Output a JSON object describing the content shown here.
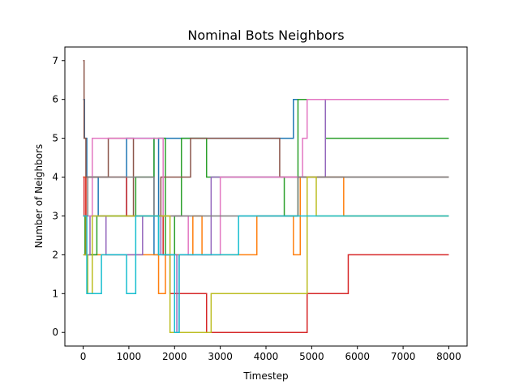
{
  "chart_data": {
    "type": "line",
    "title": "Nominal Bots Neighbors",
    "xlabel": "Timestep",
    "ylabel": "Number of Neighbors",
    "xlim": [
      -400,
      8400
    ],
    "ylim": [
      -0.35,
      7.35
    ],
    "xticks": [
      0,
      1000,
      2000,
      3000,
      4000,
      5000,
      6000,
      7000,
      8000
    ],
    "yticks": [
      0,
      1,
      2,
      3,
      4,
      5,
      6,
      7
    ],
    "xtick_labels": [
      "0",
      "1000",
      "2000",
      "3000",
      "4000",
      "5000",
      "6000",
      "7000",
      "8000"
    ],
    "ytick_labels": [
      "0",
      "1",
      "2",
      "3",
      "4",
      "5",
      "6",
      "7"
    ],
    "grid": false,
    "legend": "none",
    "series": [
      {
        "name": "series-1",
        "color": "#1f77b4",
        "points": [
          [
            0,
            6
          ],
          [
            30,
            6
          ],
          [
            30,
            5
          ],
          [
            80,
            5
          ],
          [
            80,
            4
          ],
          [
            330,
            4
          ],
          [
            330,
            3
          ],
          [
            950,
            3
          ],
          [
            950,
            5
          ],
          [
            1550,
            5
          ],
          [
            1550,
            2
          ],
          [
            1650,
            2
          ],
          [
            1650,
            5
          ],
          [
            2500,
            5
          ],
          [
            2500,
            5
          ],
          [
            4600,
            5
          ],
          [
            4600,
            6
          ],
          [
            8000,
            6
          ]
        ]
      },
      {
        "name": "series-2",
        "color": "#ff7f0e",
        "points": [
          [
            0,
            4
          ],
          [
            60,
            4
          ],
          [
            60,
            2
          ],
          [
            880,
            2
          ],
          [
            880,
            2
          ],
          [
            1400,
            2
          ],
          [
            1400,
            2
          ],
          [
            1650,
            2
          ],
          [
            1650,
            1
          ],
          [
            1800,
            1
          ],
          [
            1800,
            2
          ],
          [
            2400,
            2
          ],
          [
            2400,
            3
          ],
          [
            2600,
            3
          ],
          [
            2600,
            2
          ],
          [
            3800,
            2
          ],
          [
            3800,
            3
          ],
          [
            4600,
            3
          ],
          [
            4600,
            2
          ],
          [
            4750,
            2
          ],
          [
            4750,
            4
          ],
          [
            5700,
            4
          ],
          [
            5700,
            3
          ],
          [
            8000,
            3
          ]
        ]
      },
      {
        "name": "series-3",
        "color": "#2ca02c",
        "points": [
          [
            0,
            3
          ],
          [
            40,
            3
          ],
          [
            40,
            2
          ],
          [
            300,
            2
          ],
          [
            300,
            3
          ],
          [
            1150,
            3
          ],
          [
            1150,
            4
          ],
          [
            1550,
            4
          ],
          [
            1550,
            5
          ],
          [
            1800,
            5
          ],
          [
            1800,
            2
          ],
          [
            2000,
            2
          ],
          [
            2000,
            3
          ],
          [
            2150,
            3
          ],
          [
            2150,
            5
          ],
          [
            2700,
            5
          ],
          [
            2700,
            4
          ],
          [
            4400,
            4
          ],
          [
            4400,
            3
          ],
          [
            4700,
            3
          ],
          [
            4700,
            6
          ],
          [
            5300,
            6
          ],
          [
            5300,
            5
          ],
          [
            8000,
            5
          ]
        ]
      },
      {
        "name": "series-4",
        "color": "#d62728",
        "points": [
          [
            0,
            4
          ],
          [
            20,
            4
          ],
          [
            20,
            3
          ],
          [
            60,
            3
          ],
          [
            60,
            4
          ],
          [
            950,
            4
          ],
          [
            950,
            3
          ],
          [
            1750,
            3
          ],
          [
            1750,
            2
          ],
          [
            1900,
            2
          ],
          [
            1900,
            1
          ],
          [
            2700,
            1
          ],
          [
            2700,
            0
          ],
          [
            4900,
            0
          ],
          [
            4900,
            1
          ],
          [
            5800,
            1
          ],
          [
            5800,
            2
          ],
          [
            8000,
            2
          ]
        ]
      },
      {
        "name": "series-5",
        "color": "#9467bd",
        "points": [
          [
            0,
            2
          ],
          [
            150,
            2
          ],
          [
            150,
            3
          ],
          [
            500,
            3
          ],
          [
            500,
            2
          ],
          [
            1300,
            2
          ],
          [
            1300,
            3
          ],
          [
            1700,
            3
          ],
          [
            1700,
            2
          ],
          [
            2050,
            2
          ],
          [
            2050,
            0
          ],
          [
            2100,
            0
          ],
          [
            2100,
            2
          ],
          [
            2600,
            2
          ],
          [
            2600,
            2
          ],
          [
            2800,
            2
          ],
          [
            2800,
            4
          ],
          [
            4900,
            4
          ],
          [
            4900,
            4
          ],
          [
            5300,
            4
          ],
          [
            5300,
            6
          ],
          [
            5700,
            6
          ],
          [
            5700,
            6
          ],
          [
            8000,
            6
          ]
        ]
      },
      {
        "name": "series-6",
        "color": "#8c564b",
        "points": [
          [
            0,
            7
          ],
          [
            20,
            7
          ],
          [
            20,
            5
          ],
          [
            60,
            5
          ],
          [
            60,
            4
          ],
          [
            550,
            4
          ],
          [
            550,
            5
          ],
          [
            1100,
            5
          ],
          [
            1100,
            3
          ],
          [
            1700,
            3
          ],
          [
            1700,
            4
          ],
          [
            2350,
            4
          ],
          [
            2350,
            5
          ],
          [
            2850,
            5
          ],
          [
            2850,
            5
          ],
          [
            4300,
            5
          ],
          [
            4300,
            4
          ],
          [
            8000,
            4
          ]
        ]
      },
      {
        "name": "series-7",
        "color": "#e377c2",
        "points": [
          [
            0,
            3
          ],
          [
            200,
            3
          ],
          [
            200,
            5
          ],
          [
            1000,
            5
          ],
          [
            1000,
            5
          ],
          [
            1750,
            5
          ],
          [
            1750,
            3
          ],
          [
            2300,
            3
          ],
          [
            2300,
            2
          ],
          [
            3000,
            2
          ],
          [
            3000,
            4
          ],
          [
            4800,
            4
          ],
          [
            4800,
            5
          ],
          [
            4900,
            5
          ],
          [
            4900,
            6
          ],
          [
            5700,
            6
          ],
          [
            5700,
            6
          ],
          [
            8000,
            6
          ]
        ]
      },
      {
        "name": "series-8",
        "color": "#7f7f7f",
        "points": [
          [
            0,
            3
          ],
          [
            100,
            3
          ],
          [
            100,
            4
          ],
          [
            700,
            4
          ],
          [
            700,
            4
          ],
          [
            1550,
            4
          ],
          [
            1550,
            3
          ],
          [
            3050,
            3
          ],
          [
            3050,
            3
          ],
          [
            3400,
            3
          ],
          [
            3400,
            3
          ],
          [
            4700,
            3
          ],
          [
            4700,
            4
          ],
          [
            8000,
            4
          ]
        ]
      },
      {
        "name": "series-9",
        "color": "#bcbd22",
        "points": [
          [
            0,
            2
          ],
          [
            100,
            2
          ],
          [
            100,
            1
          ],
          [
            200,
            1
          ],
          [
            200,
            3
          ],
          [
            1000,
            3
          ],
          [
            1000,
            3
          ],
          [
            1900,
            3
          ],
          [
            1900,
            0
          ],
          [
            2600,
            0
          ],
          [
            2600,
            0
          ],
          [
            2800,
            0
          ],
          [
            2800,
            1
          ],
          [
            4900,
            1
          ],
          [
            4900,
            4
          ],
          [
            5100,
            4
          ],
          [
            5100,
            3
          ],
          [
            8000,
            3
          ]
        ]
      },
      {
        "name": "series-10",
        "color": "#17becf",
        "points": [
          [
            0,
            3
          ],
          [
            80,
            3
          ],
          [
            80,
            1
          ],
          [
            400,
            1
          ],
          [
            400,
            2
          ],
          [
            950,
            2
          ],
          [
            950,
            1
          ],
          [
            1150,
            1
          ],
          [
            1150,
            3
          ],
          [
            1650,
            3
          ],
          [
            1650,
            2
          ],
          [
            2000,
            2
          ],
          [
            2000,
            0
          ],
          [
            2100,
            0
          ],
          [
            2100,
            2
          ],
          [
            2800,
            2
          ],
          [
            2800,
            2
          ],
          [
            3400,
            2
          ],
          [
            3400,
            3
          ],
          [
            8000,
            3
          ]
        ]
      }
    ]
  }
}
